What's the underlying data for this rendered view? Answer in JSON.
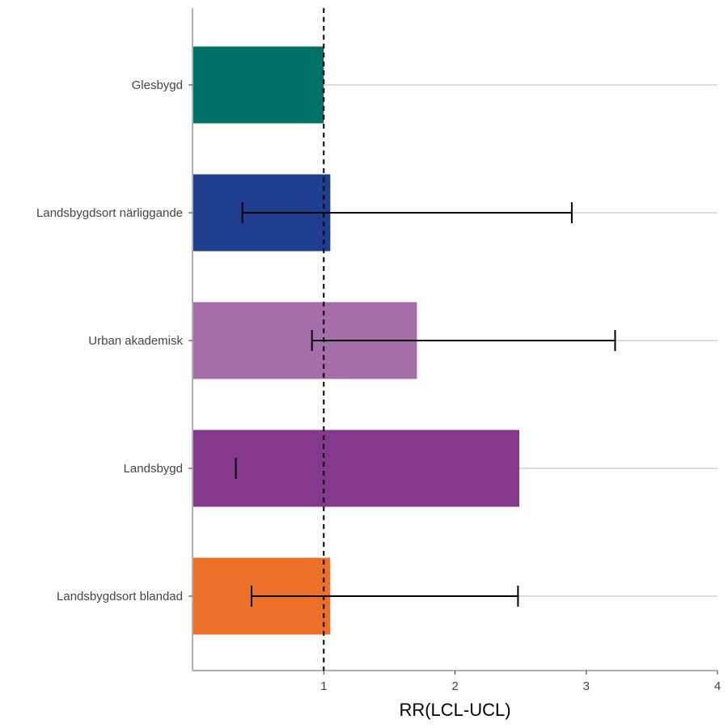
{
  "chart_data": {
    "type": "bar",
    "orientation": "horizontal",
    "title": "",
    "xlabel": "RR(LCL-UCL)",
    "ylabel": "",
    "xlim": [
      0,
      4
    ],
    "xticks": [
      1,
      2,
      3,
      4
    ],
    "reference_line": 1,
    "grid": "horizontal lines at categories",
    "legend": "none",
    "categories": [
      "Glesbygd",
      "Landsbygdsort närliggande",
      "Urban akademisk",
      "Landsbygd",
      "Landsbygdsort blandad"
    ],
    "values": [
      1.0,
      1.05,
      1.71,
      2.49,
      1.05
    ],
    "lcl": [
      null,
      0.38,
      0.91,
      0.33,
      0.45
    ],
    "ucl": [
      null,
      2.89,
      3.22,
      null,
      2.48
    ],
    "colors": [
      "#007166",
      "#1F3E8F",
      "#A56EAA",
      "#84398C",
      "#ED7029"
    ]
  }
}
